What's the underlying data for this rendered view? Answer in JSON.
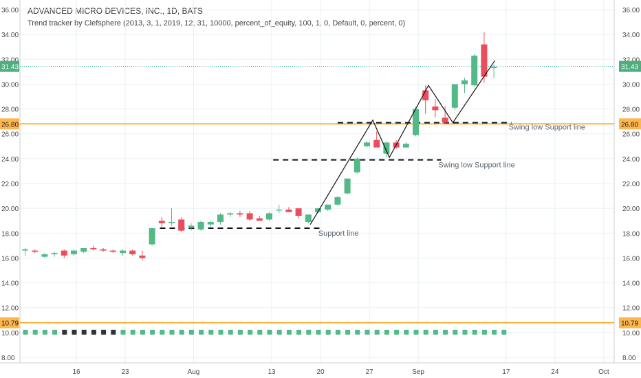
{
  "header": {
    "title": "ADVANCED MICRO DEVICES, INC., 1D, BATS",
    "indicator": "Trend tracker by Clefsphere (2013, 3, 1, 2019, 12, 31, 10000, percent_of_equity, 100, 1, 0, Default, 0, percent, 0)"
  },
  "colors": {
    "up": "#53b987",
    "down": "#eb4d5c",
    "price_line": "#26a69a",
    "level_line": "#ff9800",
    "level_tag": "#ffb74d",
    "price_tag": "#4caf7d",
    "grid": "#e8f0f5",
    "axis_text": "#4a4a4a",
    "trend_line": "#111111"
  },
  "chart_data": {
    "type": "candlestick",
    "x_tick_labels": [
      "16",
      "23",
      "Aug",
      "13",
      "20",
      "27",
      "Sep",
      "17",
      "24",
      "Oct"
    ],
    "y_tick_labels": [
      "8.00",
      "10.00",
      "12.00",
      "14.00",
      "16.00",
      "18.00",
      "20.00",
      "22.00",
      "24.00",
      "26.00",
      "28.00",
      "30.00",
      "32.00",
      "34.00",
      "36.00"
    ],
    "ylim": [
      7.8,
      36.6
    ],
    "grid": true,
    "current_price": "31.43",
    "price_levels": [
      {
        "label": "26.80",
        "value": 26.8
      },
      {
        "label": "10.79",
        "value": 10.79
      }
    ],
    "candles": [
      {
        "o": 16.6,
        "h": 16.8,
        "l": 16.2,
        "c": 16.7
      },
      {
        "o": 16.6,
        "h": 16.7,
        "l": 16.4,
        "c": 16.5
      },
      {
        "o": 16.1,
        "h": 16.4,
        "l": 16.0,
        "c": 16.3
      },
      {
        "o": 16.3,
        "h": 16.5,
        "l": 16.1,
        "c": 16.4
      },
      {
        "o": 16.6,
        "h": 16.7,
        "l": 16.0,
        "c": 16.2
      },
      {
        "o": 16.3,
        "h": 16.7,
        "l": 16.2,
        "c": 16.6
      },
      {
        "o": 16.5,
        "h": 16.8,
        "l": 16.4,
        "c": 16.8
      },
      {
        "o": 16.8,
        "h": 17.0,
        "l": 16.6,
        "c": 16.7
      },
      {
        "o": 16.7,
        "h": 16.8,
        "l": 16.5,
        "c": 16.6
      },
      {
        "o": 16.6,
        "h": 16.7,
        "l": 16.4,
        "c": 16.5
      },
      {
        "o": 16.4,
        "h": 16.7,
        "l": 16.2,
        "c": 16.6
      },
      {
        "o": 16.6,
        "h": 16.7,
        "l": 16.2,
        "c": 16.3
      },
      {
        "o": 16.2,
        "h": 16.6,
        "l": 15.8,
        "c": 16.0
      },
      {
        "o": 17.1,
        "h": 18.4,
        "l": 17.0,
        "c": 18.4
      },
      {
        "o": 19.0,
        "h": 19.3,
        "l": 18.4,
        "c": 18.8
      },
      {
        "o": 18.9,
        "h": 20.0,
        "l": 18.6,
        "c": 18.9
      },
      {
        "o": 19.1,
        "h": 19.3,
        "l": 18.1,
        "c": 18.2
      },
      {
        "o": 18.5,
        "h": 18.8,
        "l": 18.2,
        "c": 18.6
      },
      {
        "o": 18.3,
        "h": 19.0,
        "l": 18.2,
        "c": 18.9
      },
      {
        "o": 18.7,
        "h": 19.0,
        "l": 18.4,
        "c": 18.9
      },
      {
        "o": 18.9,
        "h": 19.6,
        "l": 18.7,
        "c": 19.5
      },
      {
        "o": 19.5,
        "h": 19.7,
        "l": 19.3,
        "c": 19.6
      },
      {
        "o": 19.6,
        "h": 19.8,
        "l": 19.3,
        "c": 19.5
      },
      {
        "o": 19.6,
        "h": 19.8,
        "l": 19.0,
        "c": 19.1
      },
      {
        "o": 19.2,
        "h": 19.4,
        "l": 19.0,
        "c": 19.0
      },
      {
        "o": 19.1,
        "h": 19.7,
        "l": 19.0,
        "c": 19.6
      },
      {
        "o": 19.9,
        "h": 20.3,
        "l": 19.6,
        "c": 19.9
      },
      {
        "o": 19.9,
        "h": 20.1,
        "l": 19.7,
        "c": 19.7
      },
      {
        "o": 20.0,
        "h": 20.0,
        "l": 19.2,
        "c": 19.4
      },
      {
        "o": 18.9,
        "h": 19.5,
        "l": 18.8,
        "c": 19.5
      },
      {
        "o": 19.7,
        "h": 20.0,
        "l": 19.6,
        "c": 20.0
      },
      {
        "o": 19.9,
        "h": 20.3,
        "l": 19.8,
        "c": 20.3
      },
      {
        "o": 20.3,
        "h": 21.0,
        "l": 20.2,
        "c": 20.9
      },
      {
        "o": 21.2,
        "h": 22.4,
        "l": 21.1,
        "c": 22.4
      },
      {
        "o": 22.9,
        "h": 24.1,
        "l": 22.8,
        "c": 24.0
      },
      {
        "o": 25.0,
        "h": 25.4,
        "l": 24.9,
        "c": 25.3
      },
      {
        "o": 25.5,
        "h": 26.2,
        "l": 24.9,
        "c": 24.9
      },
      {
        "o": 24.4,
        "h": 25.4,
        "l": 24.1,
        "c": 25.3
      },
      {
        "o": 25.3,
        "h": 25.5,
        "l": 24.8,
        "c": 24.9
      },
      {
        "o": 24.9,
        "h": 25.3,
        "l": 24.9,
        "c": 25.2
      },
      {
        "o": 25.9,
        "h": 28.2,
        "l": 25.8,
        "c": 28.0
      },
      {
        "o": 29.5,
        "h": 29.9,
        "l": 27.6,
        "c": 28.7
      },
      {
        "o": 28.2,
        "h": 28.8,
        "l": 27.3,
        "c": 27.9
      },
      {
        "o": 27.3,
        "h": 28.2,
        "l": 26.8,
        "c": 26.9
      },
      {
        "o": 28.1,
        "h": 30.0,
        "l": 27.9,
        "c": 30.0
      },
      {
        "o": 30.0,
        "h": 30.5,
        "l": 29.3,
        "c": 30.3
      },
      {
        "o": 29.9,
        "h": 32.4,
        "l": 29.8,
        "c": 32.3
      },
      {
        "o": 33.2,
        "h": 34.2,
        "l": 30.1,
        "c": 30.6
      },
      {
        "o": 31.3,
        "h": 31.6,
        "l": 30.5,
        "c": 31.4
      }
    ],
    "indicator_dots": {
      "value": 10.0,
      "colors": [
        "up",
        "up",
        "up",
        "up",
        "up",
        "up",
        "up",
        "up",
        "up",
        "up",
        "up",
        "up",
        "up",
        "up",
        "up",
        "up",
        "up",
        "up",
        "up",
        "up",
        "up",
        "up",
        "up",
        "up",
        "up",
        "up",
        "up",
        "up",
        "up",
        "up",
        "up",
        "up",
        "up",
        "up",
        "up",
        "up",
        "up",
        "up",
        "up",
        "up",
        "up",
        "up",
        "up",
        "up",
        "up",
        "up",
        "up",
        "up",
        "up",
        "up",
        "up",
        "up",
        "up",
        "up",
        "up",
        "up",
        "up",
        "up"
      ],
      "dark_indices": [
        4,
        5,
        6,
        7,
        8,
        9
      ]
    },
    "trend_lines": [
      {
        "points": [
          [
            29.2,
            18.7
          ],
          [
            35.6,
            27.1
          ],
          [
            37.3,
            24.1
          ],
          [
            41.3,
            29.9
          ],
          [
            43.8,
            26.9
          ],
          [
            46.8,
            30.4
          ],
          [
            48.1,
            31.9
          ]
        ]
      }
    ],
    "support_lines": [
      {
        "from": 13.8,
        "to": 30.3,
        "value": 18.4,
        "label": "Support line"
      },
      {
        "from": 25.4,
        "to": 42.6,
        "value": 23.9,
        "label": "Swing low Support line"
      },
      {
        "from": 32.0,
        "to": 49.8,
        "value": 26.9,
        "label": "Swing low Support line"
      }
    ]
  }
}
